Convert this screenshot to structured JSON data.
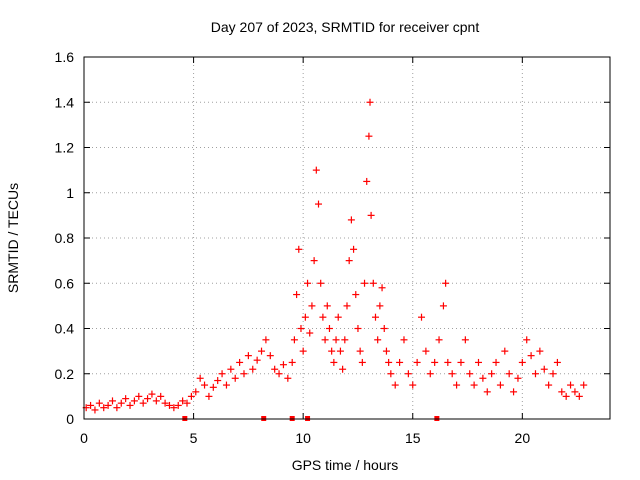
{
  "chart_data": {
    "type": "scatter",
    "title": "Day 207 of 2023, SRMTID for receiver cpnt",
    "xlabel": "GPS time / hours",
    "ylabel": "SRMTID / TECUs",
    "xlim": [
      0,
      24
    ],
    "ylim": [
      0,
      1.6
    ],
    "xticks": [
      0,
      5,
      10,
      15,
      20
    ],
    "yticks": [
      0,
      0.2,
      0.4,
      0.6,
      0.8,
      1,
      1.2,
      1.4,
      1.6
    ],
    "ytick_labels": [
      "0",
      "0.2",
      "0.4",
      "0.6",
      "0.8",
      "1",
      "1.2",
      "1.4",
      "1.6"
    ],
    "grid": true,
    "marker": "+",
    "color": "#ff0000",
    "series": [
      {
        "name": "SRMTID",
        "x": [
          0.1,
          0.3,
          0.5,
          0.7,
          0.9,
          1.1,
          1.3,
          1.5,
          1.7,
          1.9,
          2.1,
          2.3,
          2.5,
          2.7,
          2.9,
          3.1,
          3.3,
          3.5,
          3.7,
          3.9,
          4.1,
          4.3,
          4.5,
          4.7,
          4.9,
          5.1,
          5.3,
          5.5,
          5.7,
          5.9,
          6.1,
          6.3,
          6.5,
          6.7,
          6.9,
          7.1,
          7.3,
          7.5,
          7.7,
          7.9,
          8.1,
          8.3,
          8.5,
          8.7,
          8.9,
          9.1,
          9.3,
          9.5,
          9.6,
          9.7,
          9.8,
          9.9,
          10.0,
          10.1,
          10.2,
          10.3,
          10.4,
          10.5,
          10.6,
          10.7,
          10.8,
          10.9,
          11.0,
          11.1,
          11.2,
          11.3,
          11.4,
          11.5,
          11.6,
          11.7,
          11.8,
          11.9,
          12.0,
          12.1,
          12.2,
          12.3,
          12.4,
          12.5,
          12.6,
          12.7,
          12.8,
          12.9,
          13.0,
          13.05,
          13.1,
          13.2,
          13.3,
          13.4,
          13.5,
          13.6,
          13.7,
          13.8,
          13.9,
          14.0,
          14.2,
          14.4,
          14.6,
          14.8,
          15.0,
          15.2,
          15.4,
          15.6,
          15.8,
          16.0,
          16.2,
          16.4,
          16.5,
          16.6,
          16.8,
          17.0,
          17.2,
          17.4,
          17.6,
          17.8,
          18.0,
          18.2,
          18.4,
          18.6,
          18.8,
          19.0,
          19.2,
          19.4,
          19.6,
          19.8,
          20.0,
          20.2,
          20.4,
          20.6,
          20.8,
          21.0,
          21.2,
          21.4,
          21.6,
          21.8,
          22.0,
          22.2,
          22.4,
          22.6,
          22.8
        ],
        "y": [
          0.05,
          0.06,
          0.04,
          0.07,
          0.05,
          0.06,
          0.08,
          0.05,
          0.07,
          0.09,
          0.06,
          0.08,
          0.1,
          0.07,
          0.09,
          0.11,
          0.08,
          0.1,
          0.07,
          0.06,
          0.05,
          0.06,
          0.08,
          0.07,
          0.1,
          0.12,
          0.18,
          0.15,
          0.1,
          0.14,
          0.17,
          0.2,
          0.15,
          0.22,
          0.18,
          0.25,
          0.2,
          0.28,
          0.22,
          0.26,
          0.3,
          0.35,
          0.28,
          0.22,
          0.2,
          0.24,
          0.18,
          0.25,
          0.35,
          0.55,
          0.75,
          0.4,
          0.3,
          0.45,
          0.6,
          0.38,
          0.5,
          0.7,
          1.1,
          0.95,
          0.6,
          0.45,
          0.35,
          0.5,
          0.4,
          0.3,
          0.25,
          0.35,
          0.45,
          0.3,
          0.22,
          0.35,
          0.5,
          0.7,
          0.88,
          0.75,
          0.55,
          0.4,
          0.3,
          0.25,
          0.6,
          1.05,
          1.25,
          1.4,
          0.9,
          0.6,
          0.45,
          0.35,
          0.5,
          0.58,
          0.4,
          0.3,
          0.25,
          0.2,
          0.15,
          0.25,
          0.35,
          0.2,
          0.15,
          0.25,
          0.45,
          0.3,
          0.2,
          0.25,
          0.35,
          0.5,
          0.6,
          0.25,
          0.2,
          0.15,
          0.25,
          0.35,
          0.2,
          0.15,
          0.25,
          0.18,
          0.12,
          0.2,
          0.25,
          0.15,
          0.3,
          0.2,
          0.12,
          0.18,
          0.25,
          0.35,
          0.28,
          0.2,
          0.3,
          0.22,
          0.15,
          0.2,
          0.25,
          0.12,
          0.1,
          0.15,
          0.12,
          0.1,
          0.15
        ]
      }
    ],
    "baseline_markers_x": [
      4.6,
      8.2,
      9.5,
      10.2,
      16.1
    ]
  }
}
